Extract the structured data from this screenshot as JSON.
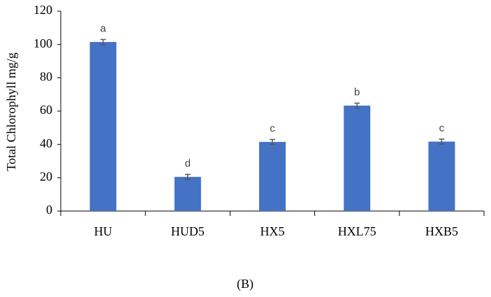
{
  "chart_data": {
    "type": "bar",
    "y_label": "Total Chlorophyll mg/g",
    "categories": [
      "HU",
      "HUD5",
      "HX5",
      "HXL75",
      "HXB5"
    ],
    "values": [
      101.5,
      20.5,
      41.5,
      63.3,
      41.7
    ],
    "errors": [
      1.5,
      1.5,
      1.5,
      1.5,
      1.5
    ],
    "letters": [
      "a",
      "d",
      "c",
      "b",
      "c"
    ],
    "color": "#4472c4",
    "ylim": [
      0,
      120
    ],
    "yticks": [
      0,
      20,
      40,
      60,
      80,
      100,
      120
    ],
    "grid": false,
    "panel_label": "(B)"
  }
}
